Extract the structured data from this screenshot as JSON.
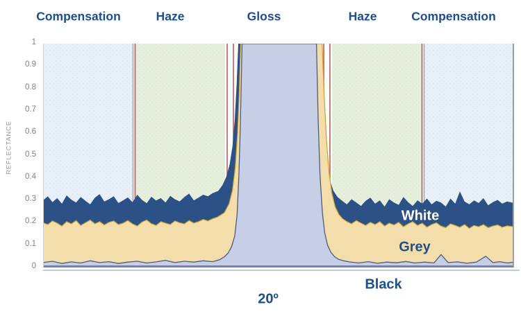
{
  "header": {
    "region_labels": [
      {
        "text": "Compensation"
      },
      {
        "text": "Haze"
      },
      {
        "text": "Gloss"
      },
      {
        "text": "Haze"
      },
      {
        "text": "Compensation"
      }
    ]
  },
  "chart_data": {
    "type": "area",
    "title": "",
    "xlabel": "20º",
    "ylabel": "REFLECTANCE",
    "grid": false,
    "legend": "inline-labels",
    "y_axis": {
      "range": [
        0,
        1
      ],
      "tick_labels": [
        "1",
        "0.9",
        "0.8",
        "0.7",
        "0.6",
        "0.5",
        "0.4",
        "0.3",
        "0.2",
        "0.1",
        "0"
      ]
    },
    "x_axis": {
      "tick_labels": [],
      "note": "detector sweep angle, unlabeled; specular peak centered under Gloss band"
    },
    "regions": [
      {
        "label": "Compensation",
        "t0": 0.0,
        "t1": 0.1903,
        "color": "#e8f1f9"
      },
      {
        "label": "Haze",
        "t0": 0.1962,
        "t1": 0.3865,
        "color": "#e6efdb"
      },
      {
        "label": "Gloss",
        "t0": 0.3865,
        "t1": 0.6135,
        "color": "#ffffff"
      },
      {
        "label": "Haze",
        "t0": 0.6135,
        "t1": 0.8038,
        "color": "#e6efdb"
      },
      {
        "label": "Compensation",
        "t0": 0.8097,
        "t1": 1.0,
        "color": "#e8f1f9"
      }
    ],
    "marker_lines": [
      {
        "t": 0.191,
        "color": "#a3a3a3",
        "width": 1.5
      },
      {
        "t": 0.1954,
        "color": "#9a5a50",
        "width": 1.5
      },
      {
        "t": 0.3909,
        "color": "#b9524c",
        "width": 1.5
      },
      {
        "t": 0.4041,
        "color": "#b9524c",
        "width": 1.5
      },
      {
        "t": 0.5959,
        "color": "#b9524c",
        "width": 1.5
      },
      {
        "t": 0.6091,
        "color": "#b9524c",
        "width": 1.5
      },
      {
        "t": 0.8046,
        "color": "#9a5a50",
        "width": 1.5
      },
      {
        "t": 0.809,
        "color": "#a3a3a3",
        "width": 1.5
      }
    ],
    "axis_color": "#6e82aa",
    "colors": {
      "label_blue": "#1f4e8c",
      "tick_grey": "#828282",
      "red_line": "#b9524c",
      "boundary_grey": "#a3a3a3",
      "boundary_redbrown": "#9a5a50",
      "underline_blue": "#b9cbe5",
      "white_series": "#2b5187",
      "grey_series": "#f3ddab",
      "black_series": "#c7cfe6"
    },
    "series": [
      {
        "name": "White",
        "fill": "#2b5187",
        "stroke": null,
        "stroke_width": 0,
        "points": [
          [
            0,
            0.3
          ],
          [
            0.01,
            0.318
          ],
          [
            0.02,
            0.292
          ],
          [
            0.03,
            0.31
          ],
          [
            0.04,
            0.285
          ],
          [
            0.05,
            0.322
          ],
          [
            0.06,
            0.303
          ],
          [
            0.07,
            0.29
          ],
          [
            0.08,
            0.315
          ],
          [
            0.09,
            0.298
          ],
          [
            0.1,
            0.282
          ],
          [
            0.11,
            0.312
          ],
          [
            0.12,
            0.328
          ],
          [
            0.13,
            0.295
          ],
          [
            0.14,
            0.305
          ],
          [
            0.15,
            0.318
          ],
          [
            0.16,
            0.288
          ],
          [
            0.17,
            0.3
          ],
          [
            0.18,
            0.313
          ],
          [
            0.19,
            0.292
          ],
          [
            0.2,
            0.325
          ],
          [
            0.21,
            0.302
          ],
          [
            0.22,
            0.287
          ],
          [
            0.23,
            0.316
          ],
          [
            0.24,
            0.299
          ],
          [
            0.25,
            0.31
          ],
          [
            0.26,
            0.29
          ],
          [
            0.27,
            0.32
          ],
          [
            0.28,
            0.305
          ],
          [
            0.29,
            0.295
          ],
          [
            0.3,
            0.315
          ],
          [
            0.31,
            0.33
          ],
          [
            0.32,
            0.3
          ],
          [
            0.33,
            0.312
          ],
          [
            0.34,
            0.325
          ],
          [
            0.35,
            0.318
          ],
          [
            0.36,
            0.332
          ],
          [
            0.372,
            0.342
          ],
          [
            0.381,
            0.368
          ],
          [
            0.389,
            0.405
          ],
          [
            0.396,
            0.46
          ],
          [
            0.402,
            0.54
          ],
          [
            0.407,
            0.66
          ],
          [
            0.411,
            0.82
          ],
          [
            0.4145,
            1.0
          ],
          [
            0.5865,
            1.0
          ],
          [
            0.59,
            0.82
          ],
          [
            0.595,
            0.64
          ],
          [
            0.601,
            0.5
          ],
          [
            0.608,
            0.4
          ],
          [
            0.616,
            0.345
          ],
          [
            0.625,
            0.315
          ],
          [
            0.635,
            0.298
          ],
          [
            0.645,
            0.282
          ],
          [
            0.655,
            0.305
          ],
          [
            0.665,
            0.29
          ],
          [
            0.675,
            0.275
          ],
          [
            0.685,
            0.298
          ],
          [
            0.695,
            0.312
          ],
          [
            0.705,
            0.285
          ],
          [
            0.715,
            0.3
          ],
          [
            0.725,
            0.272
          ],
          [
            0.735,
            0.305
          ],
          [
            0.745,
            0.29
          ],
          [
            0.755,
            0.28
          ],
          [
            0.765,
            0.315
          ],
          [
            0.775,
            0.292
          ],
          [
            0.785,
            0.275
          ],
          [
            0.795,
            0.3
          ],
          [
            0.805,
            0.285
          ],
          [
            0.815,
            0.308
          ],
          [
            0.825,
            0.282
          ],
          [
            0.835,
            0.298
          ],
          [
            0.845,
            0.29
          ],
          [
            0.855,
            0.272
          ],
          [
            0.865,
            0.308
          ],
          [
            0.875,
            0.285
          ],
          [
            0.885,
            0.34
          ],
          [
            0.895,
            0.295
          ],
          [
            0.905,
            0.282
          ],
          [
            0.915,
            0.3
          ],
          [
            0.925,
            0.288
          ],
          [
            0.935,
            0.31
          ],
          [
            0.945,
            0.278
          ],
          [
            0.955,
            0.292
          ],
          [
            0.965,
            0.302
          ],
          [
            0.975,
            0.285
          ],
          [
            0.985,
            0.295
          ],
          [
            1.0,
            0.288
          ]
        ]
      },
      {
        "name": "Grey",
        "fill": "#f3ddab",
        "stroke": "#c9a22c",
        "stroke_width": 1.2,
        "points": [
          [
            0,
            0.2
          ],
          [
            0.01,
            0.192
          ],
          [
            0.02,
            0.208
          ],
          [
            0.03,
            0.198
          ],
          [
            0.04,
            0.185
          ],
          [
            0.05,
            0.205
          ],
          [
            0.06,
            0.195
          ],
          [
            0.07,
            0.21
          ],
          [
            0.08,
            0.188
          ],
          [
            0.09,
            0.2
          ],
          [
            0.1,
            0.212
          ],
          [
            0.11,
            0.195
          ],
          [
            0.12,
            0.205
          ],
          [
            0.13,
            0.19
          ],
          [
            0.14,
            0.202
          ],
          [
            0.15,
            0.208
          ],
          [
            0.16,
            0.192
          ],
          [
            0.17,
            0.198
          ],
          [
            0.18,
            0.21
          ],
          [
            0.19,
            0.195
          ],
          [
            0.2,
            0.185
          ],
          [
            0.21,
            0.203
          ],
          [
            0.22,
            0.212
          ],
          [
            0.23,
            0.196
          ],
          [
            0.24,
            0.188
          ],
          [
            0.25,
            0.205
          ],
          [
            0.26,
            0.198
          ],
          [
            0.27,
            0.192
          ],
          [
            0.28,
            0.208
          ],
          [
            0.29,
            0.2
          ],
          [
            0.3,
            0.195
          ],
          [
            0.31,
            0.21
          ],
          [
            0.32,
            0.198
          ],
          [
            0.33,
            0.205
          ],
          [
            0.34,
            0.215
          ],
          [
            0.35,
            0.208
          ],
          [
            0.36,
            0.218
          ],
          [
            0.37,
            0.225
          ],
          [
            0.385,
            0.245
          ],
          [
            0.395,
            0.285
          ],
          [
            0.402,
            0.345
          ],
          [
            0.408,
            0.445
          ],
          [
            0.413,
            0.6
          ],
          [
            0.4165,
            0.78
          ],
          [
            0.4195,
            1.0
          ],
          [
            0.5925,
            1.0
          ],
          [
            0.597,
            0.76
          ],
          [
            0.602,
            0.56
          ],
          [
            0.607,
            0.43
          ],
          [
            0.613,
            0.335
          ],
          [
            0.62,
            0.272
          ],
          [
            0.628,
            0.237
          ],
          [
            0.636,
            0.218
          ],
          [
            0.645,
            0.205
          ],
          [
            0.655,
            0.195
          ],
          [
            0.665,
            0.21
          ],
          [
            0.675,
            0.198
          ],
          [
            0.685,
            0.188
          ],
          [
            0.695,
            0.202
          ],
          [
            0.705,
            0.192
          ],
          [
            0.715,
            0.205
          ],
          [
            0.725,
            0.185
          ],
          [
            0.735,
            0.198
          ],
          [
            0.745,
            0.19
          ],
          [
            0.755,
            0.202
          ],
          [
            0.765,
            0.182
          ],
          [
            0.775,
            0.195
          ],
          [
            0.785,
            0.205
          ],
          [
            0.795,
            0.188
          ],
          [
            0.805,
            0.198
          ],
          [
            0.815,
            0.18
          ],
          [
            0.825,
            0.192
          ],
          [
            0.835,
            0.2
          ],
          [
            0.845,
            0.185
          ],
          [
            0.855,
            0.178
          ],
          [
            0.865,
            0.195
          ],
          [
            0.875,
            0.188
          ],
          [
            0.885,
            0.18
          ],
          [
            0.895,
            0.192
          ],
          [
            0.905,
            0.175
          ],
          [
            0.915,
            0.188
          ],
          [
            0.925,
            0.182
          ],
          [
            0.935,
            0.192
          ],
          [
            0.945,
            0.178
          ],
          [
            0.955,
            0.185
          ],
          [
            0.965,
            0.19
          ],
          [
            0.975,
            0.18
          ],
          [
            0.985,
            0.186
          ],
          [
            1.0,
            0.182
          ]
        ]
      },
      {
        "name": "Black",
        "fill": "#c7cfe6",
        "stroke": "#4d5b7d",
        "stroke_width": 1.3,
        "points": [
          [
            0,
            0.022
          ],
          [
            0.02,
            0.028
          ],
          [
            0.04,
            0.018
          ],
          [
            0.06,
            0.025
          ],
          [
            0.08,
            0.02
          ],
          [
            0.1,
            0.03
          ],
          [
            0.12,
            0.022
          ],
          [
            0.14,
            0.026
          ],
          [
            0.16,
            0.018
          ],
          [
            0.18,
            0.024
          ],
          [
            0.2,
            0.028
          ],
          [
            0.22,
            0.02
          ],
          [
            0.24,
            0.025
          ],
          [
            0.26,
            0.032
          ],
          [
            0.28,
            0.022
          ],
          [
            0.3,
            0.028
          ],
          [
            0.32,
            0.024
          ],
          [
            0.34,
            0.03
          ],
          [
            0.36,
            0.026
          ],
          [
            0.375,
            0.035
          ],
          [
            0.385,
            0.048
          ],
          [
            0.393,
            0.065
          ],
          [
            0.4,
            0.092
          ],
          [
            0.407,
            0.14
          ],
          [
            0.412,
            0.235
          ],
          [
            0.416,
            0.42
          ],
          [
            0.419,
            0.65
          ],
          [
            0.4225,
            1.0
          ],
          [
            0.5805,
            1.0
          ],
          [
            0.584,
            0.66
          ],
          [
            0.588,
            0.41
          ],
          [
            0.593,
            0.245
          ],
          [
            0.598,
            0.155
          ],
          [
            0.604,
            0.1
          ],
          [
            0.611,
            0.068
          ],
          [
            0.619,
            0.048
          ],
          [
            0.628,
            0.036
          ],
          [
            0.638,
            0.03
          ],
          [
            0.65,
            0.025
          ],
          [
            0.67,
            0.02
          ],
          [
            0.69,
            0.026
          ],
          [
            0.71,
            0.019
          ],
          [
            0.73,
            0.024
          ],
          [
            0.75,
            0.021
          ],
          [
            0.77,
            0.027
          ],
          [
            0.79,
            0.02
          ],
          [
            0.81,
            0.024
          ],
          [
            0.83,
            0.02
          ],
          [
            0.845,
            0.058
          ],
          [
            0.86,
            0.022
          ],
          [
            0.88,
            0.025
          ],
          [
            0.9,
            0.019
          ],
          [
            0.92,
            0.024
          ],
          [
            0.94,
            0.05
          ],
          [
            0.955,
            0.022
          ],
          [
            0.97,
            0.026
          ],
          [
            0.985,
            0.02
          ],
          [
            1.0,
            0.024
          ]
        ]
      }
    ]
  }
}
